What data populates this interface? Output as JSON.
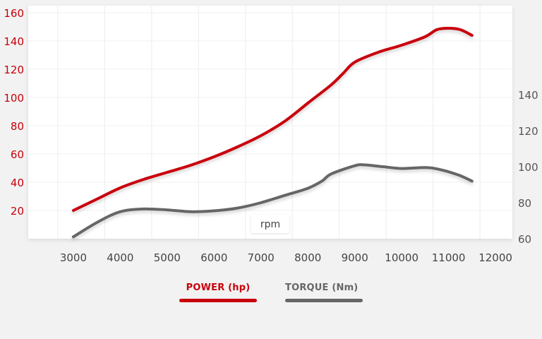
{
  "chart_data": {
    "type": "line",
    "x_unit_label": "rpm",
    "x_ticks": [
      3000,
      4000,
      5000,
      6000,
      7000,
      8000,
      9000,
      10000,
      11000,
      12000
    ],
    "x_range": [
      2700,
      12300
    ],
    "y_left_ticks": [
      20,
      40,
      60,
      80,
      100,
      120,
      140,
      160
    ],
    "y_left_range": [
      0,
      165
    ],
    "y_right_ticks": [
      60,
      80,
      100,
      120,
      140
    ],
    "y_right_range": [
      60,
      140
    ],
    "grid": true,
    "legend_position": "bottom-center",
    "series": [
      {
        "name": "POWER (hp)",
        "axis": "left",
        "color": "#c8000b",
        "points": [
          [
            3000,
            20
          ],
          [
            3500,
            28
          ],
          [
            4000,
            36
          ],
          [
            4500,
            42
          ],
          [
            5000,
            47
          ],
          [
            5500,
            52
          ],
          [
            6000,
            58
          ],
          [
            6500,
            65
          ],
          [
            7000,
            73
          ],
          [
            7500,
            83
          ],
          [
            8000,
            96
          ],
          [
            8500,
            109
          ],
          [
            8750,
            117
          ],
          [
            9000,
            125
          ],
          [
            9500,
            132
          ],
          [
            10000,
            137
          ],
          [
            10500,
            143
          ],
          [
            10750,
            148
          ],
          [
            11000,
            149
          ],
          [
            11250,
            148
          ],
          [
            11500,
            144
          ]
        ]
      },
      {
        "name": "TORQUE (Nm)",
        "axis": "right",
        "color": "#666666",
        "points": [
          [
            3000,
            61
          ],
          [
            3500,
            69
          ],
          [
            4000,
            75
          ],
          [
            4500,
            76.5
          ],
          [
            5000,
            76
          ],
          [
            5500,
            75
          ],
          [
            6000,
            75.5
          ],
          [
            6500,
            77
          ],
          [
            7000,
            80
          ],
          [
            7500,
            84
          ],
          [
            8000,
            88
          ],
          [
            8300,
            92
          ],
          [
            8500,
            96
          ],
          [
            9000,
            100.5
          ],
          [
            9200,
            101
          ],
          [
            9600,
            100
          ],
          [
            10000,
            99
          ],
          [
            10500,
            99.5
          ],
          [
            10800,
            98.5
          ],
          [
            11200,
            95.5
          ],
          [
            11500,
            92
          ]
        ]
      }
    ]
  }
}
